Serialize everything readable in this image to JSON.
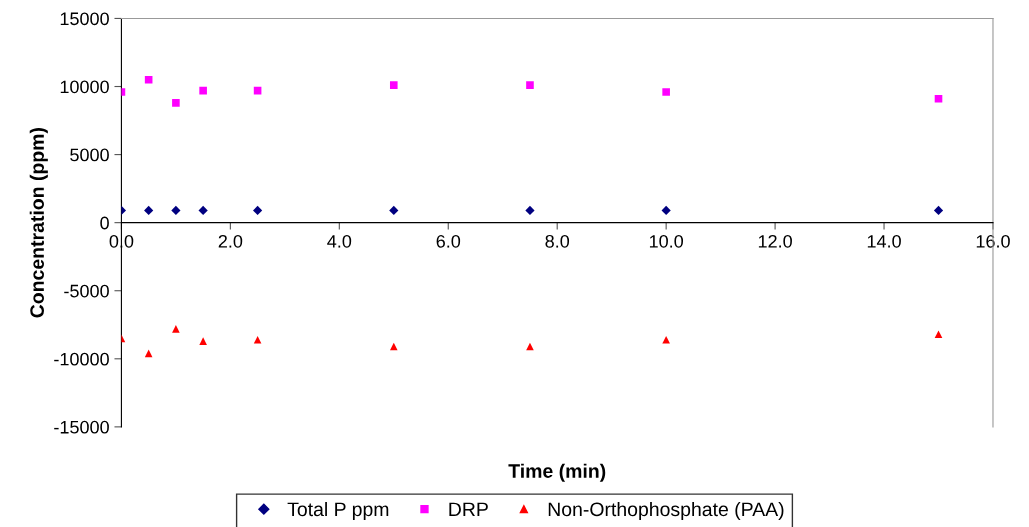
{
  "chart_data": {
    "type": "scatter",
    "xlabel": "Time (min)",
    "ylabel": "Concentration (ppm)",
    "x": [
      0.0,
      0.5,
      1.0,
      1.5,
      2.5,
      5.0,
      7.5,
      10.0,
      15.0
    ],
    "series": [
      {
        "name": "Total P ppm",
        "color": "#000080",
        "marker": "diamond",
        "values": [
          900,
          900,
          900,
          900,
          900,
          900,
          900,
          900,
          900
        ]
      },
      {
        "name": "DRP",
        "color": "#ff00ff",
        "marker": "square",
        "values": [
          9600,
          10500,
          8800,
          9700,
          9700,
          10100,
          10100,
          9600,
          9100
        ]
      },
      {
        "name": "Non-Orthophosphate (PAA)",
        "color": "#ff0000",
        "marker": "triangle",
        "values": [
          -8500,
          -9600,
          -7800,
          -8700,
          -8600,
          -9100,
          -9100,
          -8600,
          -8200
        ]
      }
    ],
    "xlim": [
      0,
      16
    ],
    "ylim": [
      -15000,
      15000
    ],
    "xticks": [
      {
        "value": 0,
        "label": "0.0"
      },
      {
        "value": 2,
        "label": "2.0"
      },
      {
        "value": 4,
        "label": "4.0"
      },
      {
        "value": 6,
        "label": "6.0"
      },
      {
        "value": 8,
        "label": "8.0"
      },
      {
        "value": 10,
        "label": "10.0"
      },
      {
        "value": 12,
        "label": "12.0"
      },
      {
        "value": 14,
        "label": "14.0"
      },
      {
        "value": 16,
        "label": "16.0"
      }
    ],
    "yticks": [
      -15000,
      -10000,
      -5000,
      0,
      5000,
      10000,
      15000
    ],
    "grid": false,
    "legend": "bottom"
  }
}
